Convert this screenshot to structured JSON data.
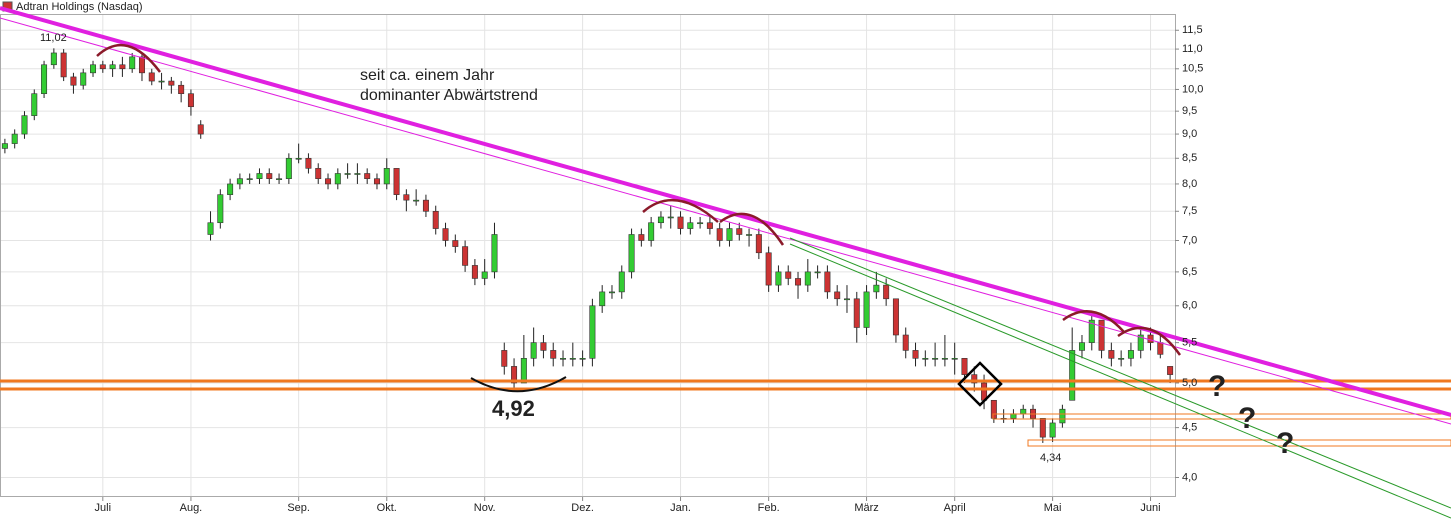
{
  "chart_data": {
    "type": "candlestick",
    "title": "Adtran Holdings (Nasdaq)",
    "log_scale": true,
    "grid": true,
    "up_color": "#33cc33",
    "down_color": "#cc3333",
    "ylim": [
      3.82,
      11.95
    ],
    "yticks": [
      {
        "value": 4,
        "label": "4,0"
      },
      {
        "value": 4.5,
        "label": "4,5"
      },
      {
        "value": 5,
        "label": "5,0"
      },
      {
        "value": 5.5,
        "label": "5,5"
      },
      {
        "value": 6,
        "label": "6,0"
      },
      {
        "value": 6.5,
        "label": "6,5"
      },
      {
        "value": 7,
        "label": "7,0"
      },
      {
        "value": 7.5,
        "label": "7,5"
      },
      {
        "value": 8,
        "label": "8,0"
      },
      {
        "value": 8.5,
        "label": "8,5"
      },
      {
        "value": 9,
        "label": "9,0"
      },
      {
        "value": 9.5,
        "label": "9,5"
      },
      {
        "value": 10,
        "label": "10,0"
      },
      {
        "value": 10.5,
        "label": "10,5"
      },
      {
        "value": 11,
        "label": "11,0"
      },
      {
        "value": 11.5,
        "label": "11,5"
      }
    ],
    "categories": [
      null,
      null,
      null,
      null,
      null,
      null,
      null,
      null,
      null,
      null,
      "Juli",
      null,
      null,
      null,
      null,
      null,
      null,
      null,
      null,
      "Aug.",
      null,
      null,
      null,
      null,
      null,
      null,
      null,
      null,
      null,
      null,
      "Sep.",
      null,
      null,
      null,
      null,
      null,
      null,
      null,
      null,
      "Okt.",
      null,
      null,
      null,
      null,
      null,
      null,
      null,
      null,
      null,
      "Nov.",
      null,
      null,
      null,
      null,
      null,
      null,
      null,
      null,
      null,
      "Dez.",
      null,
      null,
      null,
      null,
      null,
      null,
      null,
      null,
      null,
      "Jan.",
      null,
      null,
      null,
      null,
      null,
      null,
      null,
      null,
      "Feb.",
      null,
      null,
      null,
      null,
      null,
      null,
      null,
      null,
      null,
      "März",
      null,
      null,
      null,
      null,
      null,
      null,
      null,
      null,
      "April",
      null,
      null,
      null,
      null,
      null,
      null,
      null,
      null,
      null,
      "Mai",
      null,
      null,
      null,
      null,
      null,
      null,
      null,
      null,
      null,
      "Juni",
      null,
      null
    ],
    "open": [
      8.7,
      8.8,
      9.0,
      9.4,
      9.9,
      10.6,
      10.9,
      10.3,
      10.1,
      10.4,
      10.6,
      10.5,
      10.6,
      10.5,
      10.8,
      10.4,
      10.2,
      10.2,
      10.1,
      9.9,
      9.2,
      7.1,
      7.3,
      7.8,
      8.0,
      8.1,
      8.1,
      8.2,
      8.1,
      8.1,
      8.5,
      8.5,
      8.3,
      8.1,
      8.0,
      8.2,
      8.2,
      8.2,
      8.1,
      8.0,
      8.3,
      7.8,
      7.7,
      7.7,
      7.5,
      7.2,
      7.0,
      6.9,
      6.6,
      6.4,
      6.5,
      5.4,
      5.2,
      5.0,
      5.3,
      5.5,
      5.4,
      5.3,
      5.3,
      5.3,
      5.3,
      6.0,
      6.2,
      6.2,
      6.5,
      7.1,
      7.0,
      7.3,
      7.4,
      7.4,
      7.2,
      7.3,
      7.3,
      7.2,
      7.0,
      7.2,
      7.1,
      7.1,
      6.8,
      6.3,
      6.5,
      6.4,
      6.3,
      6.5,
      6.5,
      6.2,
      6.1,
      6.1,
      5.7,
      6.2,
      6.3,
      6.1,
      5.6,
      5.4,
      5.3,
      5.3,
      5.3,
      5.3,
      5.3,
      5.1,
      5.0,
      4.8,
      4.6,
      4.6,
      4.65,
      4.7,
      4.6,
      4.4,
      4.55,
      4.8,
      5.4,
      5.5,
      5.8,
      5.4,
      5.3,
      5.3,
      5.4,
      5.6,
      5.5,
      5.2
    ],
    "high": [
      8.9,
      9.1,
      9.5,
      10.0,
      10.7,
      11.02,
      11.0,
      10.4,
      10.5,
      10.7,
      10.7,
      10.7,
      10.8,
      10.9,
      10.9,
      10.5,
      10.4,
      10.3,
      10.2,
      10.0,
      9.3,
      7.5,
      7.9,
      8.1,
      8.2,
      8.2,
      8.3,
      8.3,
      8.2,
      8.6,
      8.8,
      8.6,
      8.4,
      8.2,
      8.3,
      8.4,
      8.4,
      8.3,
      8.2,
      8.5,
      8.3,
      7.9,
      7.9,
      7.8,
      7.6,
      7.3,
      7.1,
      7.0,
      6.7,
      6.7,
      7.3,
      5.5,
      5.3,
      5.6,
      5.7,
      5.6,
      5.5,
      5.4,
      5.5,
      5.4,
      6.1,
      6.3,
      6.3,
      6.6,
      7.2,
      7.2,
      7.4,
      7.5,
      7.6,
      7.5,
      7.4,
      7.4,
      7.4,
      7.3,
      7.3,
      7.3,
      7.2,
      7.2,
      6.9,
      6.6,
      6.6,
      6.5,
      6.7,
      6.6,
      6.6,
      6.3,
      6.3,
      6.2,
      6.3,
      6.5,
      6.4,
      6.1,
      5.7,
      5.5,
      5.4,
      5.5,
      5.6,
      5.5,
      5.3,
      5.2,
      5.1,
      4.8,
      4.7,
      4.7,
      4.75,
      4.75,
      4.6,
      4.6,
      4.75,
      5.7,
      5.6,
      5.9,
      5.8,
      5.5,
      5.4,
      5.5,
      5.7,
      5.7,
      5.6,
      5.2
    ],
    "low": [
      8.6,
      8.7,
      8.9,
      9.3,
      9.8,
      10.5,
      10.2,
      9.9,
      10.0,
      10.3,
      10.4,
      10.3,
      10.3,
      10.4,
      10.2,
      10.1,
      10.0,
      9.9,
      9.7,
      9.4,
      8.9,
      7.0,
      7.2,
      7.7,
      7.9,
      8.0,
      8.0,
      8.0,
      8.0,
      8.0,
      8.4,
      8.2,
      8.0,
      7.9,
      7.9,
      8.1,
      8.0,
      8.0,
      7.9,
      7.9,
      7.7,
      7.5,
      7.6,
      7.4,
      7.1,
      6.9,
      6.8,
      6.5,
      6.3,
      6.3,
      6.4,
      5.1,
      4.92,
      5.0,
      5.2,
      5.3,
      5.2,
      5.2,
      5.2,
      5.2,
      5.2,
      5.9,
      6.1,
      6.1,
      6.4,
      6.9,
      6.9,
      7.2,
      7.2,
      7.1,
      7.1,
      7.2,
      7.1,
      6.9,
      6.9,
      7.0,
      6.9,
      6.7,
      6.2,
      6.2,
      6.3,
      6.1,
      6.2,
      6.4,
      6.1,
      6.0,
      5.9,
      5.5,
      5.6,
      6.1,
      6.0,
      5.5,
      5.3,
      5.2,
      5.2,
      5.2,
      5.2,
      5.1,
      5.0,
      4.9,
      4.7,
      4.55,
      4.55,
      4.55,
      4.6,
      4.5,
      4.34,
      4.35,
      4.5,
      4.8,
      5.3,
      5.4,
      5.3,
      5.2,
      5.2,
      5.2,
      5.3,
      5.4,
      5.3,
      5.0
    ],
    "close": [
      8.8,
      9.0,
      9.4,
      9.9,
      10.6,
      10.9,
      10.3,
      10.1,
      10.4,
      10.6,
      10.5,
      10.6,
      10.5,
      10.8,
      10.4,
      10.2,
      10.2,
      10.1,
      9.9,
      9.6,
      9.0,
      7.3,
      7.8,
      8.0,
      8.1,
      8.1,
      8.2,
      8.1,
      8.1,
      8.5,
      8.5,
      8.3,
      8.1,
      8.0,
      8.2,
      8.2,
      8.2,
      8.1,
      8.0,
      8.3,
      7.8,
      7.7,
      7.7,
      7.5,
      7.2,
      7.0,
      6.9,
      6.6,
      6.4,
      6.5,
      7.1,
      5.2,
      5.0,
      5.3,
      5.5,
      5.4,
      5.3,
      5.3,
      5.3,
      5.3,
      6.0,
      6.2,
      6.2,
      6.5,
      7.1,
      7.0,
      7.3,
      7.4,
      7.4,
      7.2,
      7.3,
      7.3,
      7.2,
      7.0,
      7.2,
      7.1,
      7.1,
      6.8,
      6.3,
      6.5,
      6.4,
      6.3,
      6.5,
      6.5,
      6.2,
      6.1,
      6.1,
      5.7,
      6.2,
      6.3,
      6.1,
      5.6,
      5.4,
      5.3,
      5.3,
      5.3,
      5.3,
      5.3,
      5.1,
      5.0,
      4.8,
      4.6,
      4.6,
      4.65,
      4.7,
      4.6,
      4.4,
      4.55,
      4.7,
      5.4,
      5.5,
      5.8,
      5.4,
      5.3,
      5.3,
      5.4,
      5.6,
      5.5,
      5.35,
      5.1
    ],
    "annotations": [
      "seit ca. einem Jahr",
      "dominanter Abwärtstrend",
      "4,92",
      "11,02",
      "4,34",
      "?",
      "?",
      "?"
    ]
  }
}
